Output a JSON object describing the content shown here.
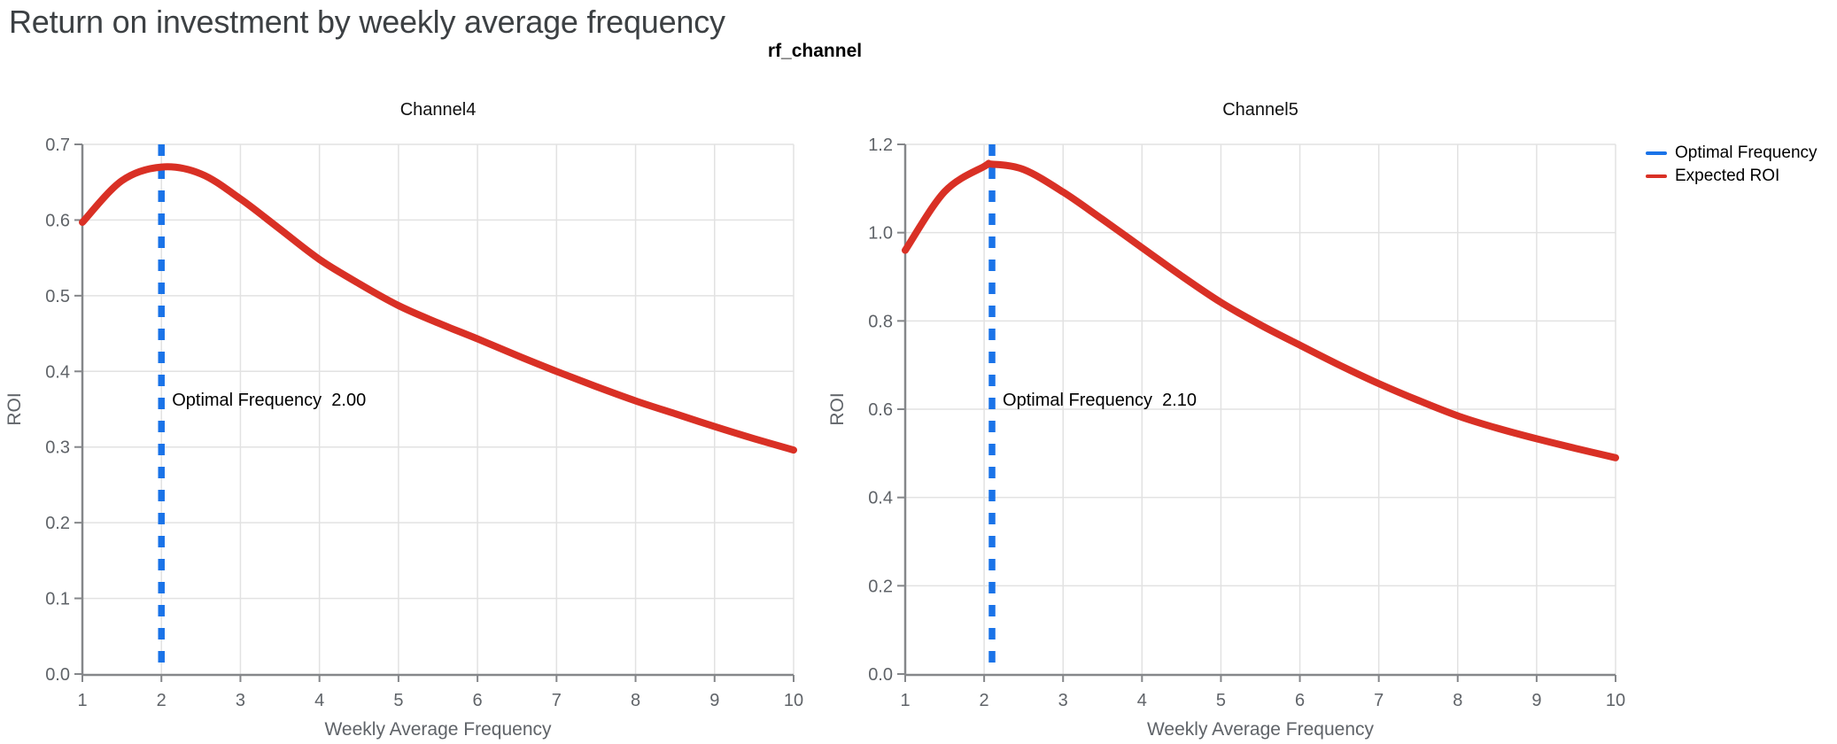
{
  "page": {
    "title": "Return on investment by weekly average frequency"
  },
  "facet_title": "rf_channel",
  "legend": {
    "position": "right",
    "items": [
      {
        "name": "Optimal Frequency",
        "color": "#1a73e8"
      },
      {
        "name": "Expected ROI",
        "color": "#d93025"
      }
    ]
  },
  "colors": {
    "expected_roi": "#d93025",
    "optimal_frequency": "#1a73e8",
    "grid": "#e2e2e2",
    "axis": "#85878a",
    "tick_label": "#5f6368",
    "axis_title": "#5f6368",
    "page_title": "#3c4043",
    "annotation_text": "#000000",
    "subplot_title": "#111111"
  },
  "chart_data": [
    {
      "type": "line",
      "title": "Channel4",
      "xlabel": "Weekly Average Frequency",
      "ylabel": "ROI",
      "xlim": [
        1,
        10
      ],
      "ylim": [
        0,
        0.7
      ],
      "grid": true,
      "xticks": [
        1,
        2,
        3,
        4,
        5,
        6,
        7,
        8,
        9,
        10
      ],
      "xtick_labels": [
        "1",
        "2",
        "3",
        "4",
        "5",
        "6",
        "7",
        "8",
        "9",
        "10"
      ],
      "ytick_values": [
        0,
        0.1,
        0.2,
        0.3,
        0.4,
        0.5,
        0.6,
        0.7
      ],
      "ytick_labels": [
        "0.0",
        "0.1",
        "0.2",
        "0.3",
        "0.4",
        "0.5",
        "0.6",
        "0.7"
      ],
      "optimal_frequency": 2.0,
      "annotation": {
        "label": "Optimal Frequency",
        "value": "2.00"
      },
      "series": [
        {
          "name": "Expected ROI",
          "x": [
            1,
            1.5,
            2,
            2.5,
            3,
            3.5,
            4,
            4.5,
            5,
            5.5,
            6,
            6.5,
            7,
            7.5,
            8,
            8.5,
            9,
            9.5,
            10
          ],
          "y": [
            0.597,
            0.652,
            0.67,
            0.661,
            0.628,
            0.588,
            0.548,
            0.516,
            0.487,
            0.464,
            0.443,
            0.421,
            0.4,
            0.38,
            0.361,
            0.344,
            0.327,
            0.311,
            0.296
          ]
        }
      ]
    },
    {
      "type": "line",
      "title": "Channel5",
      "xlabel": "Weekly Average Frequency",
      "ylabel": "ROI",
      "xlim": [
        1,
        10
      ],
      "ylim": [
        0,
        1.2
      ],
      "grid": true,
      "xticks": [
        1,
        2,
        3,
        4,
        5,
        6,
        7,
        8,
        9,
        10
      ],
      "xtick_labels": [
        "1",
        "2",
        "3",
        "4",
        "5",
        "6",
        "7",
        "8",
        "9",
        "10"
      ],
      "ytick_values": [
        0,
        0.2,
        0.4,
        0.6,
        0.8,
        1.0,
        1.2
      ],
      "ytick_labels": [
        "0.0",
        "0.2",
        "0.4",
        "0.6",
        "0.8",
        "1.0",
        "1.2"
      ],
      "optimal_frequency": 2.1,
      "annotation": {
        "label": "Optimal Frequency",
        "value": "2.10"
      },
      "series": [
        {
          "name": "Expected ROI",
          "x": [
            1,
            1.5,
            2,
            2.1,
            2.5,
            3,
            3.5,
            4,
            4.5,
            5,
            5.5,
            6,
            6.5,
            7,
            7.5,
            8,
            8.5,
            9,
            9.5,
            10
          ],
          "y": [
            0.96,
            1.093,
            1.15,
            1.155,
            1.143,
            1.092,
            1.03,
            0.966,
            0.902,
            0.842,
            0.791,
            0.745,
            0.7,
            0.658,
            0.62,
            0.585,
            0.557,
            0.533,
            0.511,
            0.49
          ]
        }
      ]
    }
  ]
}
